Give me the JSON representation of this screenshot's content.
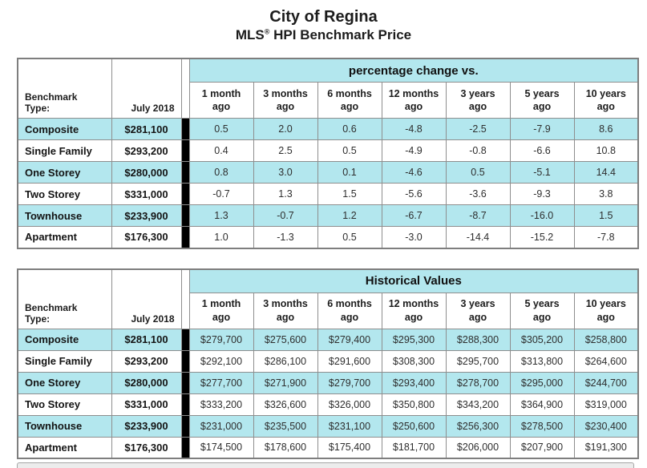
{
  "title": {
    "line1": "City of Regina",
    "line2_prefix": "MLS",
    "line2_reg": "®",
    "line2_suffix": " HPI Benchmark Price"
  },
  "colors": {
    "header_cyan": "#b3e7ee",
    "alt_row_cyan": "#b3e7ee",
    "grid_gray": "#8e8e8e",
    "thick_divider_black": "#000000",
    "bottom_strip_gray": "#ececec"
  },
  "columns": {
    "benchmark_type_label": "Benchmark Type:",
    "reference_month": "July 2018",
    "period_headers": [
      "1 month\nago",
      "3 months\nago",
      "6 months\nago",
      "12 months\nago",
      "3 years\nago",
      "5 years\nago",
      "10 years\nago"
    ]
  },
  "tables": [
    {
      "name": "percentage-change",
      "span_header": "percentage change vs.",
      "rows": [
        {
          "label": "Composite",
          "benchmark_price": "$281,100",
          "values": [
            "0.5",
            "2.0",
            "0.6",
            "-4.8",
            "-2.5",
            "-7.9",
            "8.6"
          ]
        },
        {
          "label": "Single Family",
          "benchmark_price": "$293,200",
          "values": [
            "0.4",
            "2.5",
            "0.5",
            "-4.9",
            "-0.8",
            "-6.6",
            "10.8"
          ]
        },
        {
          "label": "One Storey",
          "benchmark_price": "$280,000",
          "values": [
            "0.8",
            "3.0",
            "0.1",
            "-4.6",
            "0.5",
            "-5.1",
            "14.4"
          ]
        },
        {
          "label": "Two Storey",
          "benchmark_price": "$331,000",
          "values": [
            "-0.7",
            "1.3",
            "1.5",
            "-5.6",
            "-3.6",
            "-9.3",
            "3.8"
          ]
        },
        {
          "label": "Townhouse",
          "benchmark_price": "$233,900",
          "values": [
            "1.3",
            "-0.7",
            "1.2",
            "-6.7",
            "-8.7",
            "-16.0",
            "1.5"
          ]
        },
        {
          "label": "Apartment",
          "benchmark_price": "$176,300",
          "values": [
            "1.0",
            "-1.3",
            "0.5",
            "-3.0",
            "-14.4",
            "-15.2",
            "-7.8"
          ]
        }
      ]
    },
    {
      "name": "historical-values",
      "span_header": "Historical Values",
      "rows": [
        {
          "label": "Composite",
          "benchmark_price": "$281,100",
          "values": [
            "$279,700",
            "$275,600",
            "$279,400",
            "$295,300",
            "$288,300",
            "$305,200",
            "$258,800"
          ]
        },
        {
          "label": "Single Family",
          "benchmark_price": "$293,200",
          "values": [
            "$292,100",
            "$286,100",
            "$291,600",
            "$308,300",
            "$295,700",
            "$313,800",
            "$264,600"
          ]
        },
        {
          "label": "One Storey",
          "benchmark_price": "$280,000",
          "values": [
            "$277,700",
            "$271,900",
            "$279,700",
            "$293,400",
            "$278,700",
            "$295,000",
            "$244,700"
          ]
        },
        {
          "label": "Two Storey",
          "benchmark_price": "$331,000",
          "values": [
            "$333,200",
            "$326,600",
            "$326,000",
            "$350,800",
            "$343,200",
            "$364,900",
            "$319,000"
          ]
        },
        {
          "label": "Townhouse",
          "benchmark_price": "$233,900",
          "values": [
            "$231,000",
            "$235,500",
            "$231,100",
            "$250,600",
            "$256,300",
            "$278,500",
            "$230,400"
          ]
        },
        {
          "label": "Apartment",
          "benchmark_price": "$176,300",
          "values": [
            "$174,500",
            "$178,600",
            "$175,400",
            "$181,700",
            "$206,000",
            "$207,900",
            "$191,300"
          ]
        }
      ]
    }
  ]
}
